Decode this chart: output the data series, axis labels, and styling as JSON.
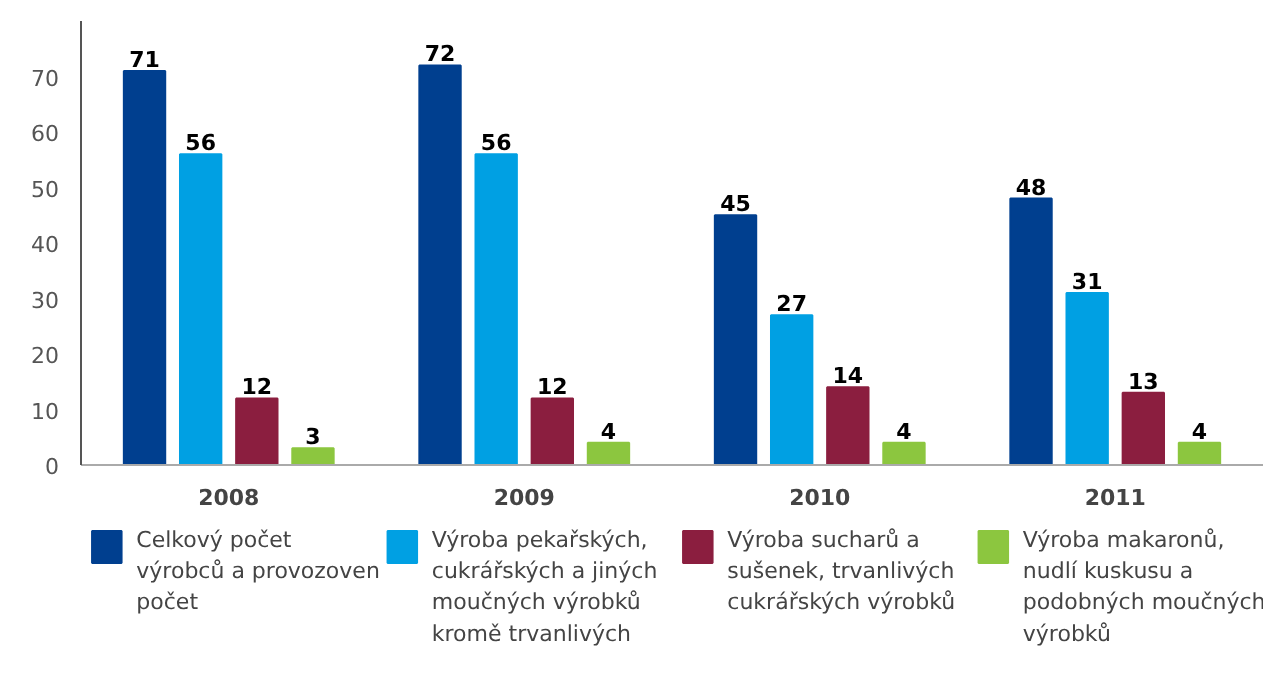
{
  "chart_data": {
    "type": "bar",
    "categories": [
      "2008",
      "2009",
      "2010",
      "2011"
    ],
    "series": [
      {
        "name": "Celkový počet výrobců a provozoven počet",
        "color": "#003f8f",
        "values": [
          71,
          72,
          45,
          48
        ]
      },
      {
        "name": "Výroba pekařských, cukrářských a jiných moučných výrobků kromě trvanlivých",
        "color": "#00a0e3",
        "values": [
          56,
          56,
          27,
          31
        ]
      },
      {
        "name": "Výroba sucharů a sušenek, trvanlivých cukrářských výrobků",
        "color": "#8b1e3f",
        "values": [
          12,
          12,
          14,
          13
        ]
      },
      {
        "name": "Výroba makaronů, nudlí kuskusu a podobných moučných výrobků",
        "color": "#8cc63f",
        "values": [
          3,
          4,
          4,
          4
        ]
      }
    ],
    "ylim": [
      0,
      80
    ],
    "yticks": [
      0,
      10,
      20,
      30,
      40,
      50,
      60,
      70
    ],
    "grid": false,
    "legend": "bottom",
    "data_labels": true
  }
}
